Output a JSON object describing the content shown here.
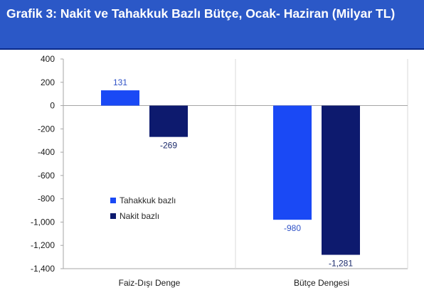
{
  "header": {
    "title": "Grafik 3: Nakit ve Tahakkuk Bazlı Bütçe, Ocak- Haziran (Milyar TL)"
  },
  "colors": {
    "header_bg": "#2b58c7",
    "header_border": "#0a2a8a",
    "tahakkuk": "#1a49f5",
    "nakit": "#0d1a6e",
    "grid": "#d9d9d9",
    "axis": "#a6a6a6"
  },
  "chart_data": {
    "type": "bar",
    "title": "Grafik 3: Nakit ve Tahakkuk Bazlı Bütçe, Ocak- Haziran (Milyar TL)",
    "categories": [
      "Faiz-Dışı Denge",
      "Bütçe Dengesi"
    ],
    "series": [
      {
        "name": "Tahakkuk bazlı",
        "values": [
          131,
          -980
        ],
        "labels": [
          "131",
          "-980"
        ]
      },
      {
        "name": "Nakit bazlı",
        "values": [
          -269,
          -1281
        ],
        "labels": [
          "-269",
          "-1,281"
        ]
      }
    ],
    "ylim": [
      -1400,
      400
    ],
    "yticks": [
      400,
      200,
      0,
      -200,
      -400,
      -600,
      -800,
      -1000,
      -1200,
      -1400
    ],
    "ytick_labels": [
      "400",
      "200",
      "0",
      "-200",
      "-400",
      "-600",
      "-800",
      "-1,000",
      "-1,200",
      "-1,400"
    ],
    "xlabel": "",
    "ylabel": "",
    "grid": "vertical category separators only",
    "legend": "inside lower-right of first category"
  }
}
